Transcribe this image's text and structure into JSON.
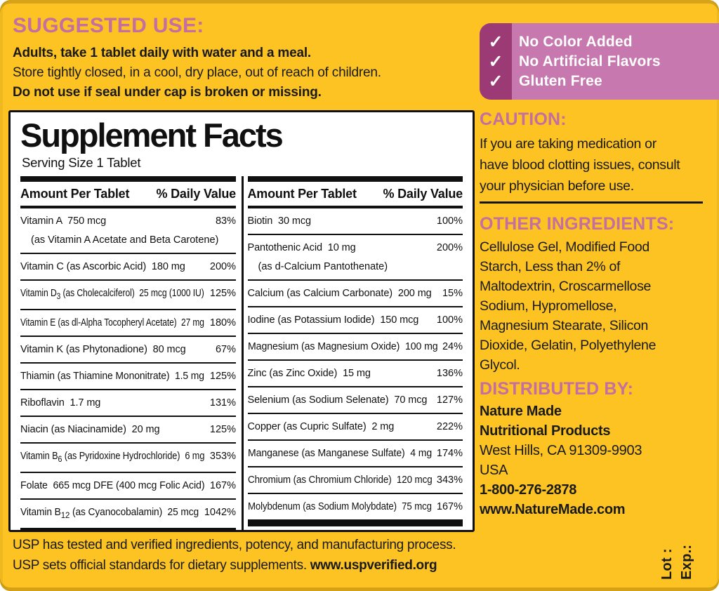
{
  "suggested_use": {
    "heading": "SUGGESTED USE:",
    "line1": "Adults, take 1 tablet daily with water and a meal.",
    "line2": "Store tightly closed, in a cool, dry place, out of reach of children.",
    "line3": "Do not use if seal under cap is broken or missing."
  },
  "badges": {
    "check_icon": "✓",
    "items": [
      "No Color Added",
      "No Artificial Flavors",
      "Gluten Free"
    ]
  },
  "supplement_facts": {
    "title": "Supplement Facts",
    "serving_size": "Serving Size 1 Tablet",
    "header_amount": "Amount Per Tablet",
    "header_dv": "% Daily Value",
    "columns": [
      {
        "rows": [
          {
            "label": "Vitamin A  750 mcg",
            "value": "83%",
            "note": "(as Vitamin A Acetate and Beta Carotene)"
          },
          {
            "label": "Vitamin C (as Ascorbic Acid)  180 mg",
            "value": "200%"
          },
          {
            "label": [
              "Vitamin D",
              {
                "sub": "3"
              },
              " (as Cholecalciferol)  25 mcg (1000 IU)"
            ],
            "value": "125%"
          },
          {
            "label": "Vitamin E (as dl-Alpha Tocopheryl Acetate)  27 mg",
            "value": "180%"
          },
          {
            "label": "Vitamin K (as Phytonadione)  80 mcg",
            "value": "67%"
          },
          {
            "label": "Thiamin (as Thiamine Mononitrate)  1.5 mg",
            "value": "125%"
          },
          {
            "label": "Riboflavin  1.7 mg",
            "value": "131%"
          },
          {
            "label": "Niacin (as Niacinamide)  20 mg",
            "value": "125%"
          },
          {
            "label": [
              "Vitamin B",
              {
                "sub": "6"
              },
              " (as Pyridoxine Hydrochloride)  6 mg"
            ],
            "value": "353%"
          },
          {
            "label": "Folate  665 mcg DFE (400 mcg Folic Acid)",
            "value": "167%"
          },
          {
            "label": [
              "Vitamin B",
              {
                "sub": "12"
              },
              " (as Cyanocobalamin)  25 mcg"
            ],
            "value": "1042%"
          }
        ]
      },
      {
        "rows": [
          {
            "label": "Biotin  30 mcg",
            "value": "100%"
          },
          {
            "label": "Pantothenic Acid  10 mg",
            "value": "200%",
            "note": "(as d-Calcium Pantothenate)"
          },
          {
            "label": "Calcium (as Calcium Carbonate)  200 mg",
            "value": "15%"
          },
          {
            "label": "Iodine (as Potassium Iodide)  150 mcg",
            "value": "100%"
          },
          {
            "label": "Magnesium (as Magnesium Oxide)  100 mg",
            "value": "24%"
          },
          {
            "label": "Zinc (as Zinc Oxide)  15 mg",
            "value": "136%"
          },
          {
            "label": "Selenium (as Sodium Selenate)  70 mcg",
            "value": "127%"
          },
          {
            "label": "Copper (as Cupric Sulfate)  2 mg",
            "value": "222%"
          },
          {
            "label": "Manganese (as Manganese Sulfate)  4 mg",
            "value": "174%"
          },
          {
            "label": "Chromium (as Chromium Chloride)  120 mcg",
            "value": "343%"
          },
          {
            "label": "Molybdenum (as Sodium Molybdate)  75 mcg",
            "value": "167%"
          }
        ]
      }
    ]
  },
  "caution": {
    "heading": "CAUTION:",
    "lines": [
      "If you are taking medication or",
      "have blood clotting issues, consult",
      "your physician before use."
    ]
  },
  "other_ingredients": {
    "heading": "OTHER INGREDIENTS:",
    "lines": [
      "Cellulose Gel, Modified Food",
      "Starch, Less than 2% of",
      "Maltodextrin, Croscarmellose",
      "Sodium, Hypromellose,",
      "Magnesium Stearate, Silicon",
      "Dioxide, Gelatin, Polyethylene",
      "Glycol."
    ]
  },
  "distributed_by": {
    "heading": "DISTRIBUTED BY:",
    "lines": [
      {
        "text": "Nature Made",
        "bold": true
      },
      {
        "text": "Nutritional Products",
        "bold": true
      },
      {
        "text": "West Hills, CA 91309-9903",
        "bold": false
      },
      {
        "text": "USA",
        "bold": false
      },
      {
        "text": "1-800-276-2878",
        "bold": true
      },
      {
        "text": "www.NatureMade.com",
        "bold": true
      }
    ]
  },
  "usp": {
    "line1": "USP has tested and verified ingredients, potency, and manufacturing process.",
    "line2_prefix": "USP sets official standards for dietary supplements. ",
    "line2_link": "www.uspverified.org"
  },
  "lot_exp": {
    "lot": "Lot :",
    "exp": "Exp.:"
  },
  "colors": {
    "background_yellow": "#fcc322",
    "heading_pink": "#c46f9f",
    "badge_dark_purple": "#9c3a76",
    "badge_light_purple": "#c778ae",
    "panel_black": "#101010"
  }
}
